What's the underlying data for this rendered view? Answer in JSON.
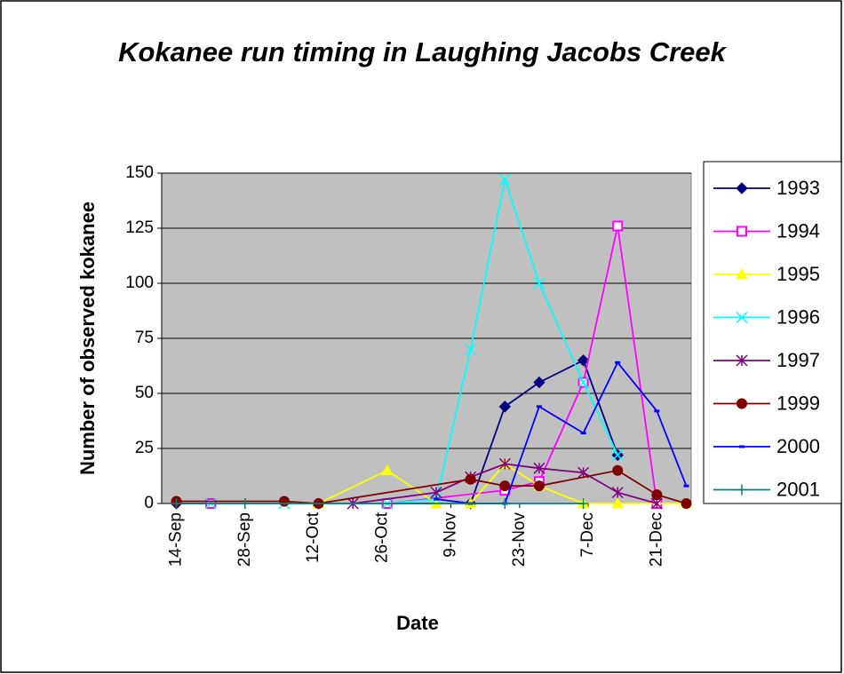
{
  "chart_data": {
    "type": "line",
    "title": "Kokanee run timing in Laughing Jacobs Creek",
    "x_label": "Date",
    "y_label": "Number of observed kokanee",
    "xlim": [
      "11-Sep",
      "28-Dec"
    ],
    "xticks": [
      "14-Sep",
      "28-Sep",
      "12-Oct",
      "26-Oct",
      "9-Nov",
      "23-Nov",
      "7-Dec",
      "21-Dec"
    ],
    "ylim": [
      0,
      150
    ],
    "yticks": [
      0,
      25,
      50,
      75,
      100,
      125,
      150
    ],
    "grid": true,
    "legend": "right",
    "series": [
      {
        "name": "1993",
        "color": "#000080",
        "marker": "diamond",
        "x": [
          "14-Sep",
          "13-Oct",
          "13-Nov",
          "20-Nov",
          "27-Nov",
          "6-Dec",
          "13-Dec"
        ],
        "values": [
          0,
          0,
          0,
          44,
          55,
          65,
          22
        ]
      },
      {
        "name": "1994",
        "color": "#ff00ff",
        "marker": "square",
        "x": [
          "21-Sep",
          "27-Oct",
          "20-Nov",
          "27-Nov",
          "6-Dec",
          "13-Dec",
          "21-Dec"
        ],
        "values": [
          0,
          0,
          6,
          10,
          55,
          126,
          0
        ]
      },
      {
        "name": "1995",
        "color": "#ffff00",
        "marker": "triangle",
        "x": [
          "13-Oct",
          "27-Oct",
          "6-Nov",
          "13-Nov",
          "20-Nov",
          "27-Nov",
          "6-Dec",
          "13-Dec",
          "27-Dec"
        ],
        "values": [
          0,
          15,
          0,
          0,
          18,
          8,
          0,
          0,
          0
        ]
      },
      {
        "name": "1996",
        "color": "#00ffff",
        "marker": "x",
        "x": [
          "21-Sep",
          "6-Oct",
          "27-Oct",
          "6-Nov",
          "13-Nov",
          "20-Nov",
          "27-Nov",
          "6-Dec",
          "13-Dec"
        ],
        "values": [
          0,
          0,
          0,
          2,
          70,
          147,
          100,
          55,
          22
        ]
      },
      {
        "name": "1997",
        "color": "#800080",
        "marker": "star",
        "x": [
          "20-Oct",
          "6-Nov",
          "13-Nov",
          "20-Nov",
          "27-Nov",
          "6-Dec",
          "13-Dec",
          "21-Dec"
        ],
        "values": [
          0,
          5,
          12,
          18,
          16,
          14,
          5,
          0
        ]
      },
      {
        "name": "1999",
        "color": "#800000",
        "marker": "circle",
        "x": [
          "14-Sep",
          "6-Oct",
          "13-Oct",
          "13-Nov",
          "20-Nov",
          "27-Nov",
          "13-Dec",
          "21-Dec",
          "27-Dec"
        ],
        "values": [
          1,
          1,
          0,
          11,
          8,
          8,
          15,
          4,
          0
        ]
      },
      {
        "name": "2000",
        "color": "#0000ff",
        "marker": "dash",
        "x": [
          "6-Nov",
          "13-Nov",
          "20-Nov",
          "27-Nov",
          "6-Dec",
          "13-Dec",
          "21-Dec",
          "27-Dec"
        ],
        "values": [
          2,
          0,
          0,
          44,
          32,
          64,
          42,
          8
        ]
      },
      {
        "name": "2001",
        "color": "#008080",
        "marker": "plus",
        "x": [
          "14-Sep",
          "28-Sep",
          "20-Nov",
          "6-Dec"
        ],
        "values": [
          0,
          0,
          0,
          0
        ]
      }
    ]
  }
}
